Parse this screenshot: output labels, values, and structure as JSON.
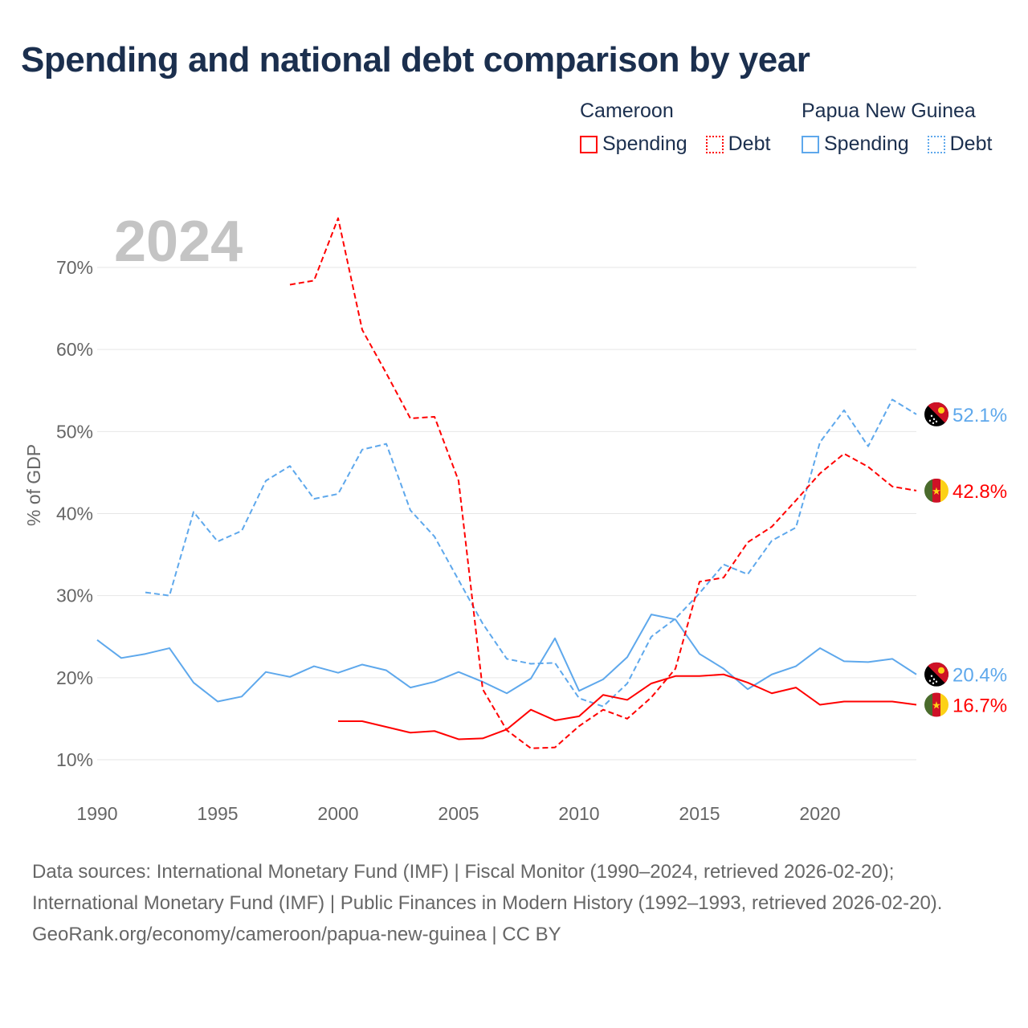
{
  "title": "Spending and national debt comparison by year",
  "legend": {
    "groups": [
      {
        "name": "Cameroon",
        "color": "#ff0000",
        "items": [
          "Spending",
          "Debt"
        ]
      },
      {
        "name": "Papua New Guinea",
        "color": "#5ea8ec",
        "items": [
          "Spending",
          "Debt"
        ]
      }
    ]
  },
  "footer": {
    "sources": "Data sources: International Monetary Fund (IMF) | Fiscal Monitor (1990–2024, retrieved 2026-02-20); International Monetary Fund (IMF) | Public Finances in Modern History (1992–1993, retrieved 2026-02-20).",
    "credit": "GeoRank.org/economy/cameroon/papua-new-guinea | CC BY"
  },
  "chart_data": {
    "type": "line",
    "title": "Spending and national debt comparison by year",
    "year_label": "2024",
    "ylabel": "% of GDP",
    "xlabel": "",
    "xlim": [
      1990,
      2024
    ],
    "ylim": [
      10,
      70
    ],
    "xticks": [
      1990,
      1995,
      2000,
      2005,
      2010,
      2015,
      2020
    ],
    "yticks": [
      10,
      20,
      30,
      40,
      50,
      60,
      70
    ],
    "ytick_labels": [
      "10%",
      "20%",
      "30%",
      "40%",
      "50%",
      "60%",
      "70%"
    ],
    "grid": true,
    "legend_position": "top-right",
    "series": [
      {
        "name": "Papua New Guinea Spending",
        "country": "Papua New Guinea",
        "color": "#5ea8ec",
        "dash": false,
        "end_label": "20.4%",
        "start": 1990,
        "values": [
          24.6,
          22.4,
          22.9,
          23.6,
          19.4,
          17.1,
          17.7,
          20.7,
          20.1,
          21.4,
          20.6,
          21.6,
          20.9,
          18.8,
          19.5,
          20.7,
          19.5,
          18.1,
          19.9,
          24.8,
          18.4,
          19.8,
          22.5,
          27.7,
          27.1,
          22.9,
          21.1,
          18.6,
          20.4,
          21.4,
          23.6,
          22.0,
          21.9,
          22.3,
          20.4
        ]
      },
      {
        "name": "Papua New Guinea Debt",
        "country": "Papua New Guinea",
        "color": "#5ea8ec",
        "dash": true,
        "end_label": "52.1%",
        "start": 1992,
        "values": [
          30.4,
          30.0,
          40.2,
          36.6,
          37.9,
          44.0,
          45.8,
          41.8,
          42.4,
          47.8,
          48.5,
          40.4,
          37.2,
          31.9,
          26.6,
          22.3,
          21.7,
          21.8,
          17.5,
          16.5,
          19.3,
          25.0,
          27.2,
          30.3,
          33.8,
          32.6,
          36.7,
          38.3,
          48.7,
          52.6,
          48.2,
          53.9,
          52.1
        ]
      },
      {
        "name": "Cameroon Spending",
        "country": "Cameroon",
        "color": "#ff0000",
        "dash": false,
        "end_label": "16.7%",
        "start": 2000,
        "values": [
          14.7,
          14.7,
          14.0,
          13.3,
          13.5,
          12.5,
          12.6,
          13.7,
          16.1,
          14.8,
          15.3,
          17.9,
          17.3,
          19.3,
          20.2,
          20.2,
          20.4,
          19.4,
          18.1,
          18.8,
          16.7,
          17.1,
          17.1,
          17.1,
          16.7
        ]
      },
      {
        "name": "Cameroon Debt",
        "country": "Cameroon",
        "color": "#ff0000",
        "dash": true,
        "end_label": "42.8%",
        "start": 1998,
        "values": [
          67.9,
          68.4,
          76.0,
          62.4,
          57.1,
          51.6,
          51.8,
          44.0,
          18.6,
          13.6,
          11.4,
          11.5,
          14.1,
          16.1,
          15.0,
          17.6,
          21.1,
          31.7,
          32.2,
          36.5,
          38.4,
          41.6,
          44.9,
          47.3,
          45.7,
          43.3,
          42.8
        ]
      }
    ]
  }
}
